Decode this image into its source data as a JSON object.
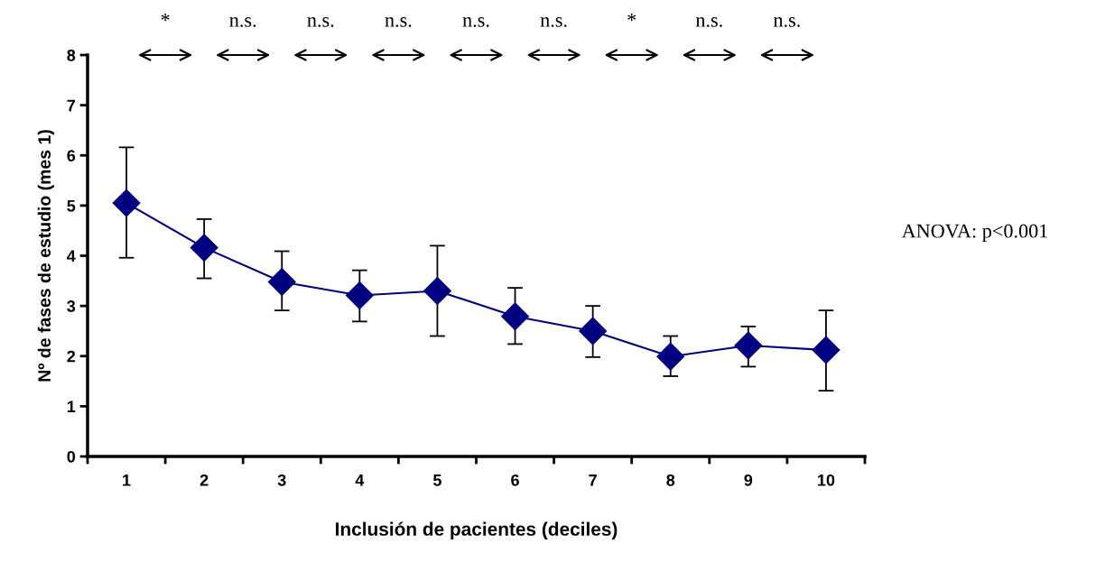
{
  "chart_data": {
    "type": "line",
    "xlabel": "Inclusión de pacientes (deciles)",
    "ylabel": "Nº de fases de estudio (mes 1)",
    "categories": [
      "1",
      "2",
      "3",
      "4",
      "5",
      "6",
      "7",
      "8",
      "9",
      "10"
    ],
    "series": [
      {
        "color": "#000080",
        "values": [
          5.05,
          4.16,
          3.48,
          3.21,
          3.3,
          2.79,
          2.5,
          1.99,
          2.21,
          2.12
        ],
        "errors": [
          [
            3.96,
            6.16
          ],
          [
            3.55,
            4.73
          ],
          [
            2.91,
            4.09
          ],
          [
            2.69,
            3.71
          ],
          [
            2.4,
            4.2
          ],
          [
            2.24,
            3.36
          ],
          [
            1.98,
            3.0
          ],
          [
            1.6,
            2.4
          ],
          [
            1.79,
            2.59
          ],
          [
            1.31,
            2.91
          ]
        ]
      }
    ],
    "ylim": [
      0,
      8
    ],
    "yticks": [
      0,
      1,
      2,
      3,
      4,
      5,
      6,
      7,
      8
    ],
    "marker": "diamond",
    "line_style": "solid",
    "grid": false,
    "legend": false,
    "annotations": [
      "*",
      "n.s.",
      "n.s.",
      "n.s.",
      "n.s.",
      "n.s.",
      "*",
      "n.s.",
      "n.s.",
      "ANOVA: p<0.001"
    ]
  }
}
